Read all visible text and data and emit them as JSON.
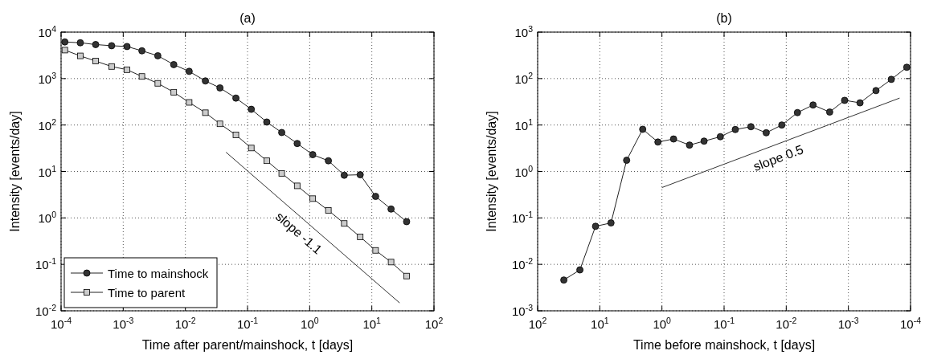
{
  "chart_data": [
    {
      "type": "line",
      "title": "(a)",
      "xlabel": "Time after parent/mainshock, t [days]",
      "ylabel": "Intensity [events/day]",
      "log": "xy",
      "grid": true,
      "legend": "bottom left",
      "xlim": [
        0.0001,
        100
      ],
      "ylim": [
        0.01,
        10000
      ],
      "xticks": [
        {
          "value": 0.0001,
          "label": "10$^{-4}$"
        },
        {
          "value": 0.001,
          "label": "10$^{-3}$"
        },
        {
          "value": 0.01,
          "label": "10$^{-2}$"
        },
        {
          "value": 0.1,
          "label": "10$^{-1}$"
        },
        {
          "value": 1,
          "label": "10$^{0}$"
        },
        {
          "value": 10,
          "label": "10$^{1}$"
        },
        {
          "value": 100,
          "label": "10$^{2}$"
        }
      ],
      "yticks": [
        {
          "value": 0.01,
          "label": "10$^{-2}$"
        },
        {
          "value": 0.1,
          "label": "10$^{-1}$"
        },
        {
          "value": 1,
          "label": "10$^{0}$"
        },
        {
          "value": 10,
          "label": "10$^{1}$"
        },
        {
          "value": 100,
          "label": "10$^{2}$"
        },
        {
          "value": 1000,
          "label": "10$^{3}$"
        },
        {
          "value": 10000,
          "label": "10$^{4}$"
        }
      ],
      "series": [
        {
          "name": "Time to mainshock",
          "color": "#333333",
          "marker": "circle",
          "x": [
            0.000115,
            0.000204,
            0.00036,
            0.00065,
            0.00115,
            0.002,
            0.0036,
            0.0065,
            0.0115,
            0.021,
            0.036,
            0.065,
            0.115,
            0.204,
            0.355,
            0.63,
            1.12,
            2.0,
            3.6,
            6.5,
            11.5,
            20.4,
            36.3
          ],
          "values": [
            6150,
            5900,
            5400,
            5100,
            4900,
            3960,
            3100,
            2000,
            1430,
            890,
            630,
            380,
            218,
            116,
            69,
            40,
            23,
            17,
            8.3,
            8.5,
            2.9,
            1.55,
            0.83
          ]
        },
        {
          "name": "Time to parent",
          "color": "#cccccc",
          "marker": "square",
          "x": [
            0.000115,
            0.000204,
            0.00036,
            0.00065,
            0.00115,
            0.002,
            0.0036,
            0.0065,
            0.0115,
            0.021,
            0.036,
            0.065,
            0.115,
            0.204,
            0.355,
            0.63,
            1.12,
            2.0,
            3.6,
            6.5,
            11.5,
            20.4,
            36.3
          ],
          "values": [
            4100,
            3080,
            2380,
            1820,
            1550,
            1110,
            790,
            508,
            307,
            184,
            106,
            61,
            32,
            17,
            9.1,
            4.9,
            2.6,
            1.45,
            0.76,
            0.39,
            0.2,
            0.112,
            0.056
          ]
        },
        {
          "type": "line",
          "color": "#333333",
          "marker": "none",
          "x": [
            0.045,
            28
          ],
          "values": [
            26,
            0.0148
          ]
        }
      ],
      "annotations": [
        "slope -1.1"
      ]
    },
    {
      "type": "line",
      "title": "(b)",
      "xlabel": "Time before mainshock, t [days]",
      "ylabel": "Intensity [events/day]",
      "log": "xy",
      "grid": true,
      "xlim": [
        100,
        0.0001
      ],
      "ylim": [
        0.001,
        1000
      ],
      "xticks": [
        {
          "value": 100,
          "label": "10$^{2}$"
        },
        {
          "value": 10,
          "label": "10$^{1}$"
        },
        {
          "value": 1,
          "label": "10$^{0}$"
        },
        {
          "value": 0.1,
          "label": "10$^{-1}$"
        },
        {
          "value": 0.01,
          "label": "10$^{-2}$"
        },
        {
          "value": 0.001,
          "label": "10$^{-3}$"
        },
        {
          "value": 0.0001,
          "label": "10$^{-4}$"
        }
      ],
      "yticks": [
        {
          "value": 0.001,
          "label": "10$^{-3}$"
        },
        {
          "value": 0.01,
          "label": "10$^{-2}$"
        },
        {
          "value": 0.1,
          "label": "10$^{-1}$"
        },
        {
          "value": 1,
          "label": "10$^{0}$"
        },
        {
          "value": 10,
          "label": "10$^{1}$"
        },
        {
          "value": 100,
          "label": "10$^{2}$"
        },
        {
          "value": 1000,
          "label": "10$^{3}$"
        }
      ],
      "series": [
        {
          "color": "#333333",
          "marker": "circle",
          "x": [
            37.9,
            20.9,
            11.7,
            6.6,
            3.7,
            2.04,
            1.16,
            0.65,
            0.36,
            0.21,
            0.115,
            0.066,
            0.037,
            0.021,
            0.0118,
            0.0066,
            0.0037,
            0.002,
            0.00115,
            0.00065,
            0.00036,
            0.000204,
            0.000115
          ],
          "values": [
            0.0046,
            0.0076,
            0.066,
            0.078,
            1.74,
            8.1,
            4.3,
            5.0,
            3.7,
            4.5,
            5.6,
            8.0,
            9.2,
            6.8,
            10,
            18.5,
            27,
            19,
            34,
            30,
            55,
            96,
            175
          ]
        },
        {
          "type": "line",
          "color": "#333333",
          "marker": "none",
          "x": [
            1,
            0.00015
          ],
          "values": [
            0.45,
            38
          ]
        }
      ],
      "annotations": [
        "slope 0.5"
      ]
    }
  ]
}
